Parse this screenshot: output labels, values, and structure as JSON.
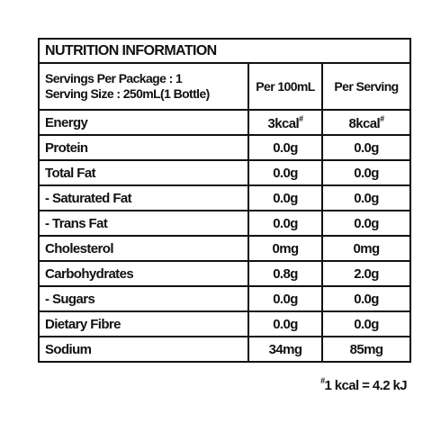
{
  "title": "NUTRITION INFORMATION",
  "header": {
    "servings": "Servings Per Package : 1",
    "serving_size": "Serving Size : 250mL(1 Bottle)",
    "col1": "Per 100mL",
    "col2": "Per Serving"
  },
  "rows": [
    {
      "label": "Energy",
      "per_100ml": "3kcal",
      "per_100ml_note": "#",
      "per_serving": "8kcal",
      "per_serving_note": "#"
    },
    {
      "label": "Protein",
      "per_100ml": "0.0g",
      "per_serving": "0.0g"
    },
    {
      "label": "Total Fat",
      "per_100ml": "0.0g",
      "per_serving": "0.0g"
    },
    {
      "label": "- Saturated Fat",
      "per_100ml": "0.0g",
      "per_serving": "0.0g"
    },
    {
      "label": "- Trans Fat",
      "per_100ml": "0.0g",
      "per_serving": "0.0g"
    },
    {
      "label": "Cholesterol",
      "per_100ml": "0mg",
      "per_serving": "0mg"
    },
    {
      "label": "Carbohydrates",
      "per_100ml": "0.8g",
      "per_serving": "2.0g"
    },
    {
      "label": "- Sugars",
      "per_100ml": "0.0g",
      "per_serving": "0.0g"
    },
    {
      "label": "Dietary Fibre",
      "per_100ml": "0.0g",
      "per_serving": "0.0g"
    },
    {
      "label": "Sodium",
      "per_100ml": "34mg",
      "per_serving": "85mg"
    }
  ],
  "footnote": {
    "mark": "#",
    "text": "1 kcal = 4.2 kJ"
  }
}
